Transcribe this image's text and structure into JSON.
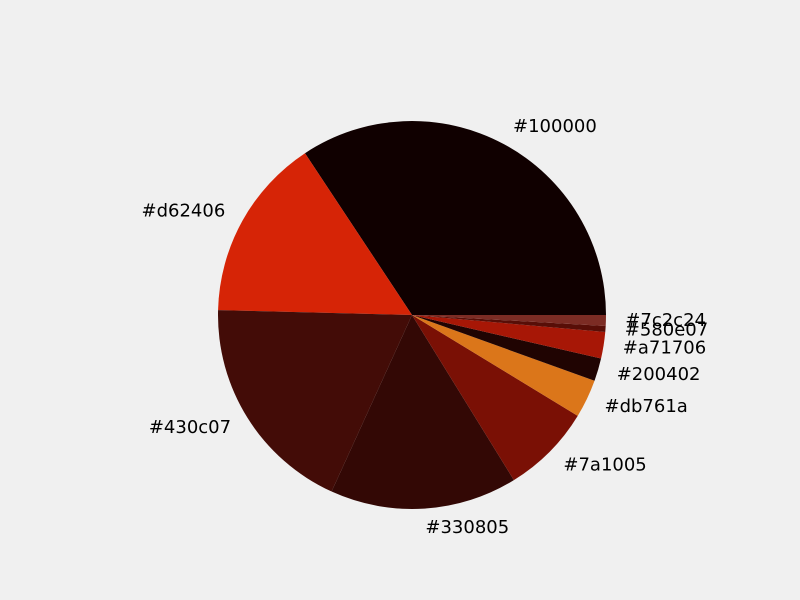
{
  "chart_data": {
    "type": "pie",
    "title": "",
    "start_angle_deg": 0,
    "direction": "counterclockwise",
    "slices": [
      {
        "label": "#100000",
        "value": 34.3,
        "color": "#100000"
      },
      {
        "label": "#d62406",
        "value": 15.3,
        "color": "#d62406"
      },
      {
        "label": "#430c07",
        "value": 18.6,
        "color": "#430c07"
      },
      {
        "label": "#330805",
        "value": 15.6,
        "color": "#330805"
      },
      {
        "label": "#7a1005",
        "value": 7.5,
        "color": "#7a1005"
      },
      {
        "label": "#db761a",
        "value": 3.2,
        "color": "#db761a"
      },
      {
        "label": "#200402",
        "value": 1.9,
        "color": "#200402"
      },
      {
        "label": "#a71706",
        "value": 2.2,
        "color": "#a71706"
      },
      {
        "label": "#580e07",
        "value": 0.5,
        "color": "#580e07"
      },
      {
        "label": "#7c2c24",
        "value": 0.9,
        "color": "#7c2c24"
      }
    ]
  }
}
